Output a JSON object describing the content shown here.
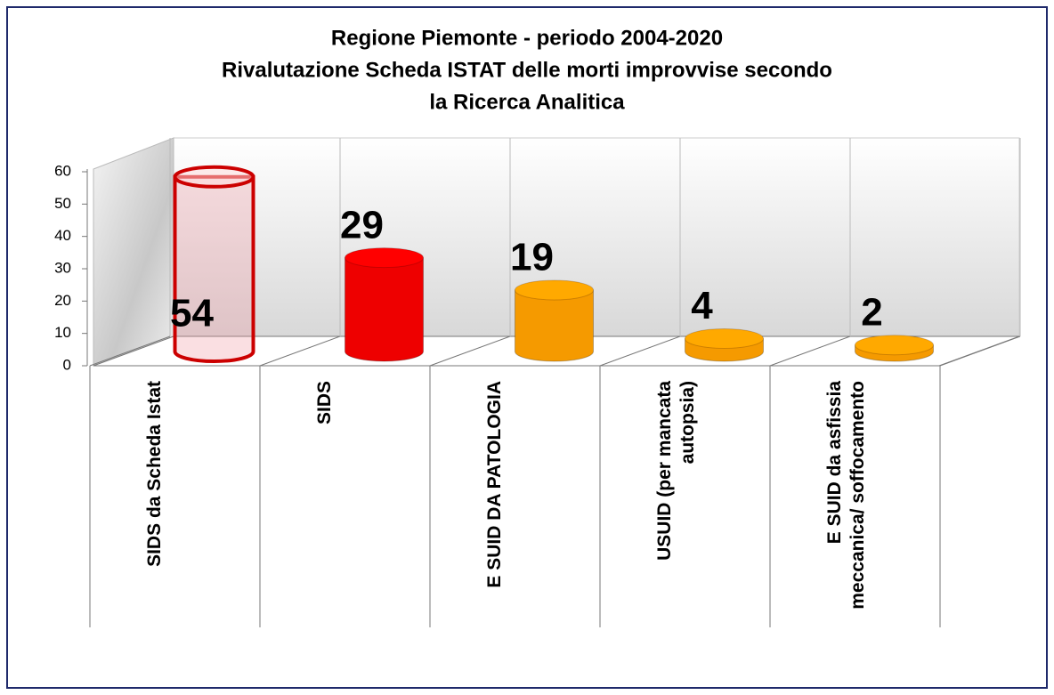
{
  "chart_data": {
    "type": "bar",
    "title": [
      "Regione Piemonte  -  periodo 2004-2020",
      "Rivalutazione Scheda ISTAT delle morti improvvise secondo",
      "la Ricerca Analitica"
    ],
    "categories": [
      "SIDS da Scheda Istat",
      "SIDS",
      "E SUID DA PATOLOGIA",
      "USUID (per mancata autopsia)",
      "E SUID da asfissia meccanica/ soffocamento"
    ],
    "values": [
      54,
      29,
      19,
      4,
      2
    ],
    "colors": [
      "#cc0000",
      "#ee0000",
      "#f59a00",
      "#f59a00",
      "#f59a00"
    ],
    "ylim": [
      0,
      60
    ],
    "yticks": [
      0,
      10,
      20,
      30,
      40,
      50,
      60
    ],
    "grid": false
  }
}
